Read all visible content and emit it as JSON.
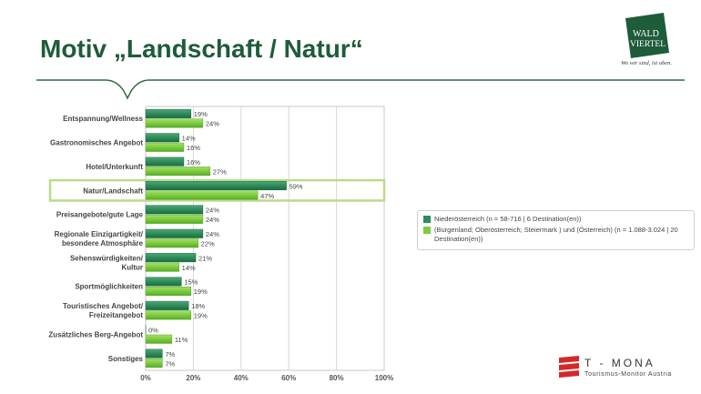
{
  "header": {
    "title": "Motiv „Landschaft / Natur“",
    "logo_line1": "WALD",
    "logo_line2": "VIERTEL",
    "logo_tagline": "Wo wir sind, ist oben."
  },
  "footer": {
    "brand": "T - MONA",
    "brand_sub": "Tourismus-Monitor Austria"
  },
  "colors": {
    "title": "#1e5c3a",
    "series1": "#2e8b5a",
    "series2": "#7ccc3f",
    "highlight": "#b9dc8a",
    "header_line": "#2f6b45"
  },
  "chart_data": {
    "type": "bar",
    "orientation": "horizontal",
    "categories": [
      "Entspannung/Wellness",
      "Gastronomisches Angebot",
      "Hotel/Unterkunft",
      "Natur/Landschaft",
      "Preisangebote/gute Lage",
      "Regionale Einzigartigkeit/\nbesondere Atmosphäre",
      "Sehenswürdigkeiten/\nKultur",
      "Sportmöglichkeiten",
      "Touristisches Angebot/\nFreizeitangebot",
      "Zusätzliches Berg-Angebot",
      "Sonstiges"
    ],
    "series": [
      {
        "name": "Niederösterreich (n = 58-716 | 6 Destination(en))",
        "values": [
          19,
          14,
          16,
          59,
          24,
          24,
          21,
          15,
          18,
          0,
          7
        ],
        "labels": [
          "19%",
          "14%",
          "16%",
          "59%",
          "24%",
          "24%",
          "21%",
          "15%",
          "18%",
          "0%",
          "7%"
        ]
      },
      {
        "name": "(Burgenland; Oberösterreich; Steiermark ) und (Österreich) (n = 1.088-3.024 | 20 Destination(en))",
        "values": [
          24,
          16,
          27,
          47,
          24,
          22,
          14,
          19,
          19,
          11,
          7
        ],
        "labels": [
          "24%",
          "16%",
          "27%",
          "47%",
          "24%",
          "22%",
          "14%",
          "19%",
          "19%",
          "11%",
          "7%"
        ]
      }
    ],
    "highlighted_category": "Natur/Landschaft",
    "xlim": [
      0,
      100
    ],
    "xticks": [
      0,
      20,
      40,
      60,
      80,
      100
    ],
    "xtick_labels": [
      "0%",
      "20%",
      "40%",
      "60%",
      "80%",
      "100%"
    ],
    "grid": true,
    "legend_position": "right"
  }
}
